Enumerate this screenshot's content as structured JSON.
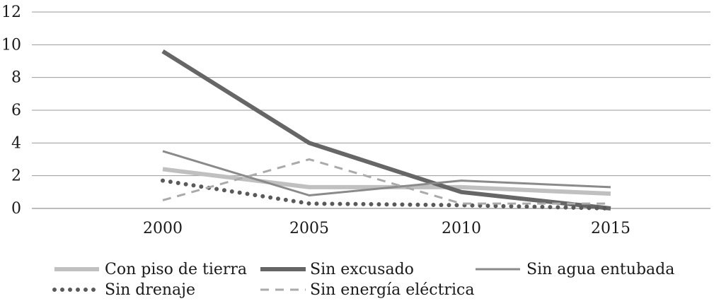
{
  "chart_data": {
    "type": "line",
    "title": "",
    "xlabel": "",
    "ylabel": "",
    "x": [
      "2000",
      "2005",
      "2010",
      "2015"
    ],
    "ylim": [
      0,
      12
    ],
    "yticks": [
      0,
      2,
      4,
      6,
      8,
      10,
      12
    ],
    "grid": true,
    "legend_position": "bottom",
    "series": [
      {
        "name": "Con piso de tierra",
        "values": [
          2.4,
          1.3,
          1.3,
          0.9
        ],
        "color": "#c0c0c0",
        "style": "solid-thick"
      },
      {
        "name": "Sin excusado",
        "values": [
          9.6,
          4.0,
          1.0,
          0.0
        ],
        "color": "#666666",
        "style": "solid-thick"
      },
      {
        "name": "Sin agua entubada",
        "values": [
          3.5,
          0.8,
          1.7,
          1.3
        ],
        "color": "#8a8a8a",
        "style": "solid-thin"
      },
      {
        "name": "Sin drenaje",
        "values": [
          1.7,
          0.3,
          0.2,
          0.0
        ],
        "color": "#5a5a5a",
        "style": "dotted"
      },
      {
        "name": "Sin energía eléctrica",
        "values": [
          0.5,
          3.0,
          0.3,
          0.3
        ],
        "color": "#aaaaaa",
        "style": "dashed"
      }
    ]
  }
}
